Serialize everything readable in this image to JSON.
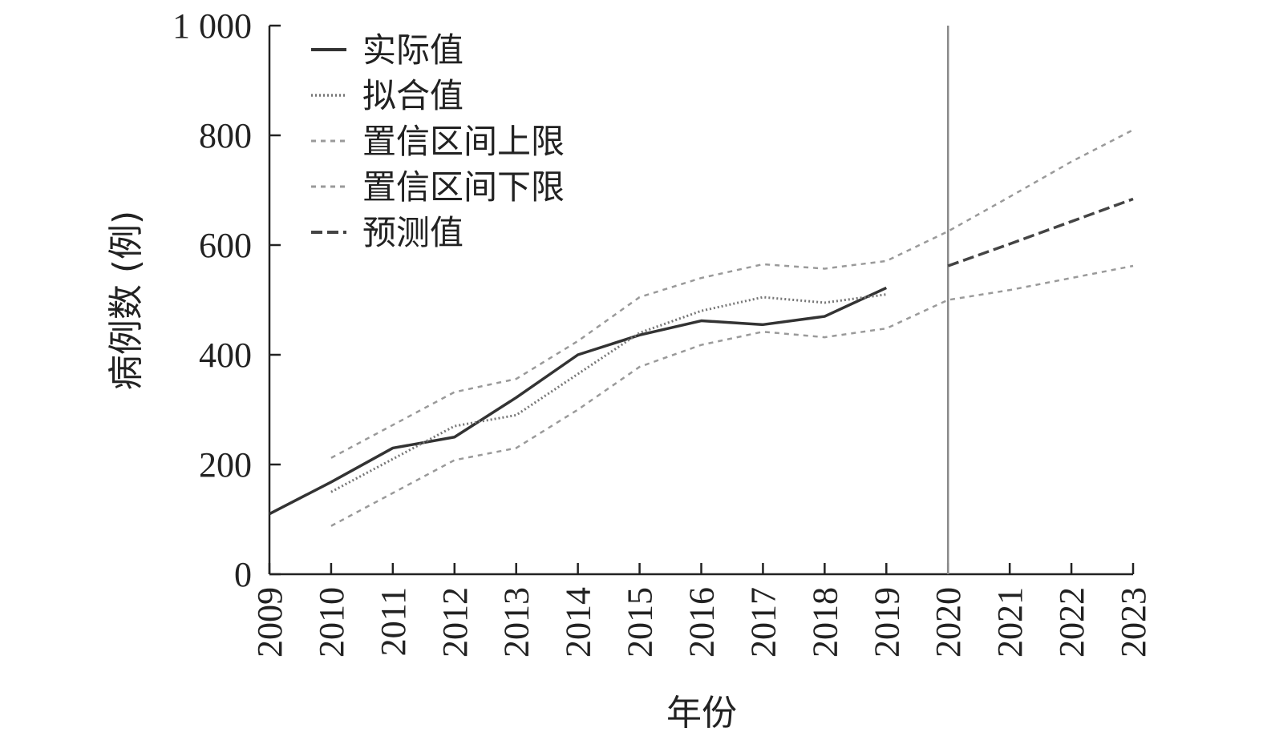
{
  "chart_data": {
    "type": "line",
    "title": "",
    "xlabel": "年份",
    "ylabel": "病例数 (例)",
    "x": [
      "2009",
      "2010",
      "2011",
      "2012",
      "2013",
      "2014",
      "2015",
      "2016",
      "2017",
      "2018",
      "2019",
      "2020",
      "2021",
      "2022",
      "2023"
    ],
    "yticks": [
      "0",
      "200",
      "400",
      "600",
      "800",
      "1 000"
    ],
    "ylim": [
      0,
      1000
    ],
    "legend_position": "top-left",
    "grid": false,
    "separator_year": "2020",
    "series": [
      {
        "name": "实际值",
        "style": "solid",
        "color": "#333333",
        "x": [
          "2009",
          "2010",
          "2011",
          "2012",
          "2013",
          "2014",
          "2015",
          "2016",
          "2017",
          "2018",
          "2019"
        ],
        "values": [
          110,
          168,
          230,
          250,
          322,
          400,
          436,
          462,
          455,
          470,
          522
        ]
      },
      {
        "name": "拟合值",
        "style": "dotted",
        "color": "#777777",
        "x": [
          "2010",
          "2011",
          "2012",
          "2013",
          "2014",
          "2015",
          "2016",
          "2017",
          "2018",
          "2019"
        ],
        "values": [
          150,
          210,
          270,
          290,
          365,
          440,
          480,
          505,
          495,
          510
        ]
      },
      {
        "name": "置信区间上限",
        "style": "dashed-fine",
        "color": "#9a9a9a",
        "x": [
          "2010",
          "2011",
          "2012",
          "2013",
          "2014",
          "2015",
          "2016",
          "2017",
          "2018",
          "2019",
          "2020",
          "2021",
          "2022",
          "2023"
        ],
        "values": [
          212,
          272,
          332,
          356,
          425,
          505,
          540,
          565,
          557,
          571,
          625,
          688,
          752,
          810
        ]
      },
      {
        "name": "置信区间下限",
        "style": "dashed-fine",
        "color": "#9a9a9a",
        "x": [
          "2010",
          "2011",
          "2012",
          "2013",
          "2014",
          "2015",
          "2016",
          "2017",
          "2018",
          "2019",
          "2020",
          "2021",
          "2022",
          "2023"
        ],
        "values": [
          88,
          148,
          208,
          230,
          300,
          378,
          418,
          442,
          432,
          448,
          500,
          518,
          540,
          562
        ]
      },
      {
        "name": "预测值",
        "style": "dashed",
        "color": "#444444",
        "x": [
          "2020",
          "2021",
          "2022",
          "2023"
        ],
        "values": [
          562,
          602,
          643,
          684
        ]
      }
    ]
  }
}
